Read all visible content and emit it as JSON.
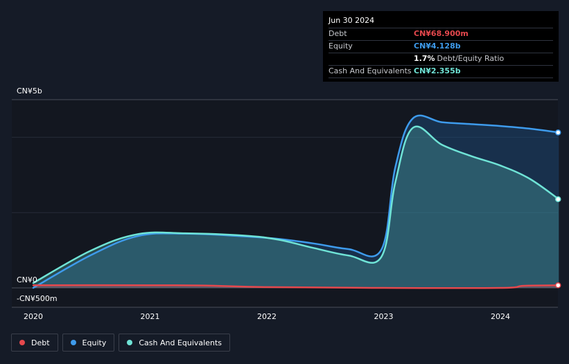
{
  "tooltip": {
    "date": "Jun 30 2024",
    "rows": [
      {
        "label": "Debt",
        "value": "CN¥68.900m",
        "color": "#e5484d"
      },
      {
        "label": "Equity",
        "value": "CN¥4.128b",
        "color": "#3e9bec"
      },
      {
        "label": "",
        "value": "1.7%",
        "suffix": "Debt/Equity Ratio",
        "color": "#ffffff"
      },
      {
        "label": "Cash And Equivalents",
        "value": "CN¥2.355b",
        "color": "#6fe3d6"
      }
    ]
  },
  "legend": [
    {
      "label": "Debt",
      "color": "#e5484d"
    },
    {
      "label": "Equity",
      "color": "#3e9bec"
    },
    {
      "label": "Cash And Equivalents",
      "color": "#6fe3d6"
    }
  ],
  "chart_data": {
    "type": "area",
    "x_ticks": [
      "2020",
      "2021",
      "2022",
      "2023",
      "2024"
    ],
    "y_tick_labels": {
      "top": "CN¥5b",
      "zero": "CN¥0",
      "bottom": "-CN¥500m"
    },
    "ylim": [
      -500,
      5000
    ],
    "y_unit": "CN¥m",
    "series": [
      {
        "name": "Equity",
        "color": "#3e9bec",
        "points": [
          [
            2020.0,
            0
          ],
          [
            2020.5,
            880
          ],
          [
            2020.9,
            1380
          ],
          [
            2021.3,
            1440
          ],
          [
            2021.8,
            1370
          ],
          [
            2022.1,
            1300
          ],
          [
            2022.4,
            1180
          ],
          [
            2022.7,
            1030
          ],
          [
            2022.98,
            1010
          ],
          [
            2023.1,
            3200
          ],
          [
            2023.25,
            4500
          ],
          [
            2023.5,
            4400
          ],
          [
            2023.75,
            4350
          ],
          [
            2024.0,
            4300
          ],
          [
            2024.25,
            4230
          ],
          [
            2024.5,
            4128
          ]
        ]
      },
      {
        "name": "Cash And Equivalents",
        "color": "#6fe3d6",
        "points": [
          [
            2020.0,
            130
          ],
          [
            2020.5,
            1000
          ],
          [
            2020.9,
            1430
          ],
          [
            2021.3,
            1450
          ],
          [
            2021.8,
            1390
          ],
          [
            2022.1,
            1280
          ],
          [
            2022.4,
            1060
          ],
          [
            2022.7,
            860
          ],
          [
            2022.98,
            820
          ],
          [
            2023.1,
            2800
          ],
          [
            2023.25,
            4250
          ],
          [
            2023.5,
            3800
          ],
          [
            2023.75,
            3500
          ],
          [
            2024.0,
            3250
          ],
          [
            2024.25,
            2900
          ],
          [
            2024.5,
            2355
          ]
        ]
      },
      {
        "name": "Debt",
        "color": "#e5484d",
        "points": [
          [
            2020.0,
            70
          ],
          [
            2021.0,
            70
          ],
          [
            2021.5,
            60
          ],
          [
            2022.0,
            20
          ],
          [
            2023.0,
            0
          ],
          [
            2024.0,
            0
          ],
          [
            2024.2,
            55
          ],
          [
            2024.5,
            68.9
          ]
        ]
      }
    ]
  }
}
